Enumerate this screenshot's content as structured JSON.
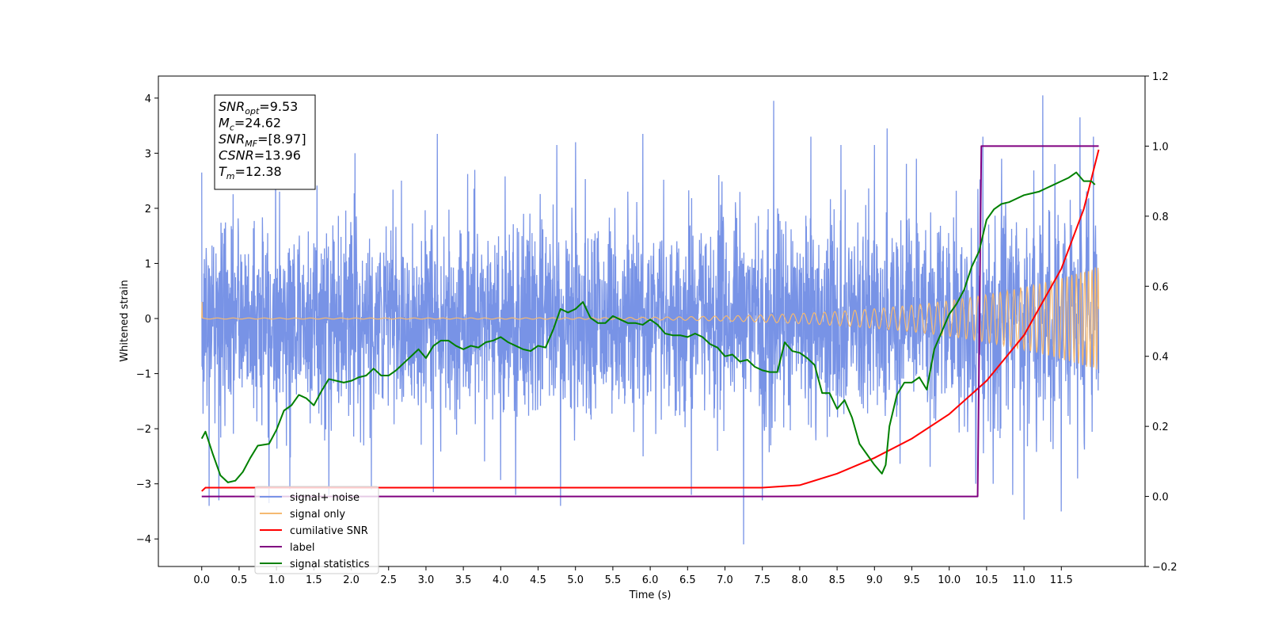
{
  "chart_data": {
    "type": "line",
    "xlabel": "Time (s)",
    "ylabel": "Whitened strain",
    "xlim": [
      -0.58,
      12.62
    ],
    "ylim": [
      -4.5,
      4.4
    ],
    "y2lim": [
      -0.2,
      1.2
    ],
    "x_ticks": [
      0.0,
      0.5,
      1.0,
      1.5,
      2.0,
      2.5,
      3.0,
      3.5,
      4.0,
      4.5,
      5.0,
      5.5,
      6.0,
      6.5,
      7.0,
      7.5,
      8.0,
      8.5,
      9.0,
      9.5,
      10.0,
      10.5,
      11.0,
      11.5
    ],
    "x_tick_labels": [
      "0.0",
      "0.5",
      "1.0",
      "1.5",
      "2.0",
      "2.5",
      "3.0",
      "3.5",
      "4.0",
      "4.5",
      "5.0",
      "5.5",
      "6.0",
      "6.5",
      "7.0",
      "7.5",
      "8.0",
      "8.5",
      "9.0",
      "9.5",
      "10.0",
      "10.5",
      "11.0",
      "11.5"
    ],
    "y_ticks": [
      -4,
      -3,
      -2,
      -1,
      0,
      1,
      2,
      3,
      4
    ],
    "y_tick_labels": [
      "−4",
      "−3",
      "−2",
      "−1",
      "0",
      "1",
      "2",
      "3",
      "4"
    ],
    "y2_ticks": [
      -0.2,
      0.0,
      0.2,
      0.4,
      0.6,
      0.8,
      1.0,
      1.2
    ],
    "y2_tick_labels": [
      "−0.2",
      "0.0",
      "0.2",
      "0.4",
      "0.6",
      "0.8",
      "1.0",
      "1.2"
    ],
    "legend_position": "lower-left",
    "annotation": [
      {
        "main": "SNR",
        "sub": "opt",
        "rest": "=9.53"
      },
      {
        "main": "M",
        "sub": "c",
        "rest": "=24.62"
      },
      {
        "main": "SNR",
        "sub": "MF",
        "rest": "=[8.97]"
      },
      {
        "main": "CSNR",
        "sub": "",
        "rest": "=13.96"
      },
      {
        "main": "T",
        "sub": "m",
        "rest": "=12.38"
      }
    ],
    "series": [
      {
        "name": "signal+ noise",
        "color": "#7893e6",
        "axis": "left",
        "x_range": [
          0.0,
          12.0
        ],
        "baseline_std": 1.05,
        "envelope_growth_start": 7.5,
        "envelope_end": 0.95,
        "extremes": [
          {
            "x": 0.0,
            "y": 2.65
          },
          {
            "x": 0.1,
            "y": -3.4
          },
          {
            "x": 0.23,
            "y": -3.3
          },
          {
            "x": 0.9,
            "y": -3.35
          },
          {
            "x": 1.18,
            "y": -3.1
          },
          {
            "x": 1.7,
            "y": -3.2
          },
          {
            "x": 2.05,
            "y": 3.0
          },
          {
            "x": 2.27,
            "y": -3.1
          },
          {
            "x": 3.1,
            "y": -3.15
          },
          {
            "x": 3.15,
            "y": 3.35
          },
          {
            "x": 4.2,
            "y": -3.2
          },
          {
            "x": 4.75,
            "y": 3.15
          },
          {
            "x": 4.8,
            "y": -3.4
          },
          {
            "x": 5.0,
            "y": 3.2
          },
          {
            "x": 5.9,
            "y": 3.35
          },
          {
            "x": 6.55,
            "y": -3.2
          },
          {
            "x": 7.25,
            "y": -4.1
          },
          {
            "x": 7.5,
            "y": -3.3
          },
          {
            "x": 7.65,
            "y": 3.95
          },
          {
            "x": 8.15,
            "y": 3.3
          },
          {
            "x": 8.55,
            "y": 3.15
          },
          {
            "x": 9.0,
            "y": 3.15
          },
          {
            "x": 9.17,
            "y": 3.45
          },
          {
            "x": 10.45,
            "y": 3.3
          },
          {
            "x": 10.85,
            "y": -3.2
          },
          {
            "x": 11.0,
            "y": -3.65
          },
          {
            "x": 11.25,
            "y": 4.05
          },
          {
            "x": 11.5,
            "y": -3.5
          },
          {
            "x": 11.75,
            "y": 3.65
          },
          {
            "x": 11.93,
            "y": 3.3
          }
        ]
      },
      {
        "name": "signal only",
        "color": "#f5b971",
        "axis": "left",
        "x_range": [
          0.0,
          12.0
        ],
        "amplitude_start": 0.01,
        "amplitude_end": 0.95,
        "initial_spike": 0.3
      },
      {
        "name": "cumilative SNR",
        "color": "#ff0000",
        "axis": "right",
        "x": [
          0.0,
          0.05,
          7.5,
          8.0,
          8.5,
          9.0,
          9.5,
          10.0,
          10.5,
          11.0,
          11.5,
          11.8,
          12.0
        ],
        "y": [
          0.015,
          0.025,
          0.025,
          0.032,
          0.065,
          0.11,
          0.165,
          0.235,
          0.33,
          0.46,
          0.65,
          0.82,
          0.99
        ]
      },
      {
        "name": "label",
        "color": "#800080",
        "axis": "right",
        "x": [
          0.0,
          10.38,
          10.43,
          12.0
        ],
        "y": [
          0.0,
          0.0,
          1.0,
          1.0
        ]
      },
      {
        "name": "signal statistics",
        "color": "#008000",
        "axis": "right",
        "x": [
          0.0,
          0.05,
          0.15,
          0.25,
          0.35,
          0.45,
          0.55,
          0.65,
          0.75,
          0.9,
          1.0,
          1.1,
          1.2,
          1.3,
          1.4,
          1.5,
          1.6,
          1.7,
          1.8,
          1.9,
          2.0,
          2.1,
          2.2,
          2.3,
          2.4,
          2.5,
          2.6,
          2.7,
          2.8,
          2.9,
          3.0,
          3.1,
          3.2,
          3.3,
          3.4,
          3.5,
          3.6,
          3.7,
          3.8,
          3.9,
          4.0,
          4.1,
          4.2,
          4.3,
          4.4,
          4.5,
          4.6,
          4.7,
          4.8,
          4.9,
          5.0,
          5.1,
          5.2,
          5.3,
          5.4,
          5.5,
          5.6,
          5.7,
          5.8,
          5.9,
          6.0,
          6.1,
          6.2,
          6.3,
          6.4,
          6.5,
          6.6,
          6.7,
          6.8,
          6.9,
          7.0,
          7.1,
          7.2,
          7.3,
          7.4,
          7.5,
          7.6,
          7.7,
          7.8,
          7.9,
          8.0,
          8.1,
          8.2,
          8.3,
          8.4,
          8.5,
          8.6,
          8.7,
          8.8,
          8.9,
          9.0,
          9.1,
          9.15,
          9.2,
          9.3,
          9.4,
          9.5,
          9.6,
          9.7,
          9.8,
          9.9,
          10.0,
          10.1,
          10.2,
          10.3,
          10.4,
          10.5,
          10.6,
          10.7,
          10.8,
          10.9,
          11.0,
          11.1,
          11.2,
          11.3,
          11.4,
          11.5,
          11.6,
          11.7,
          11.8,
          11.9,
          11.95
        ],
        "y": [
          0.165,
          0.185,
          0.12,
          0.06,
          0.04,
          0.045,
          0.07,
          0.11,
          0.145,
          0.15,
          0.19,
          0.245,
          0.26,
          0.29,
          0.28,
          0.26,
          0.3,
          0.335,
          0.33,
          0.325,
          0.33,
          0.34,
          0.345,
          0.365,
          0.345,
          0.345,
          0.36,
          0.38,
          0.4,
          0.42,
          0.395,
          0.43,
          0.445,
          0.445,
          0.43,
          0.42,
          0.43,
          0.425,
          0.44,
          0.445,
          0.455,
          0.44,
          0.43,
          0.42,
          0.415,
          0.43,
          0.425,
          0.475,
          0.535,
          0.525,
          0.535,
          0.555,
          0.51,
          0.495,
          0.495,
          0.515,
          0.505,
          0.495,
          0.495,
          0.49,
          0.505,
          0.49,
          0.465,
          0.46,
          0.46,
          0.455,
          0.465,
          0.455,
          0.435,
          0.425,
          0.4,
          0.405,
          0.385,
          0.39,
          0.37,
          0.36,
          0.355,
          0.355,
          0.44,
          0.415,
          0.41,
          0.395,
          0.375,
          0.295,
          0.295,
          0.25,
          0.275,
          0.225,
          0.15,
          0.12,
          0.09,
          0.065,
          0.09,
          0.2,
          0.29,
          0.325,
          0.325,
          0.34,
          0.305,
          0.42,
          0.47,
          0.52,
          0.55,
          0.59,
          0.655,
          0.7,
          0.79,
          0.82,
          0.835,
          0.84,
          0.85,
          0.86,
          0.865,
          0.87,
          0.88,
          0.89,
          0.9,
          0.91,
          0.925,
          0.9,
          0.9,
          0.89
        ]
      }
    ]
  }
}
